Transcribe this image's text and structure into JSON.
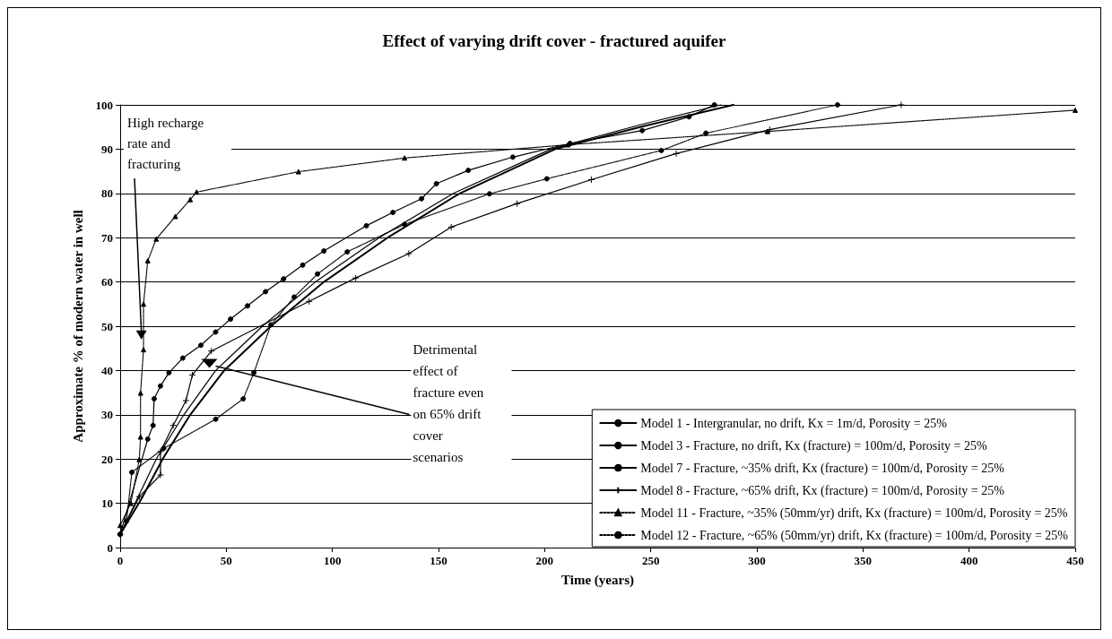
{
  "chart_data": {
    "type": "line",
    "title": "Effect of varying drift cover - fractured aquifer",
    "xlabel": "Time (years)",
    "ylabel": "Approximate % of modern water in well",
    "xlim": [
      0,
      450
    ],
    "xticks": [
      0,
      50,
      100,
      150,
      200,
      250,
      300,
      350,
      400,
      450
    ],
    "ylim": [
      0,
      100
    ],
    "yticks": [
      0,
      10,
      20,
      30,
      40,
      50,
      60,
      70,
      80,
      90,
      100
    ],
    "grid": "y",
    "legend": "bottom right",
    "series": [
      {
        "name": "Model 1 - Intergranular, no drift, Kx = 1m/d, Porosity = 25%",
        "color": "#000000",
        "marker": "none",
        "line_style": "solid",
        "x": [
          0,
          10,
          20,
          33,
          49,
          71,
          96,
          126,
          160,
          205,
          245,
          289
        ],
        "values": [
          3,
          11,
          20,
          30,
          40,
          50,
          60,
          70,
          80,
          90,
          95,
          100
        ]
      },
      {
        "name": "Model 3 - Fracture, no drift, Kx (fracture) = 100m/d, Porosity = 25%",
        "color": "#000000",
        "marker": "none",
        "line_style": "solid",
        "x": [
          0,
          8,
          17,
          30,
          45,
          67,
          92,
          122,
          157,
          203,
          245,
          283
        ],
        "values": [
          3,
          11,
          20,
          30,
          40,
          50,
          60,
          70,
          80,
          90,
          95.5,
          100
        ]
      },
      {
        "name": "Model 7 - Fracture, ~35% drift, Kx (fracture) = 100m/d, Porosity = 25%",
        "color": "#000000",
        "marker": "circle",
        "line_style": "solid",
        "x": [
          0,
          13,
          15.5,
          16,
          19,
          23,
          29.5,
          38,
          45,
          52,
          60,
          68.5,
          77,
          86,
          96,
          116,
          128.5,
          142,
          149,
          164,
          185,
          212,
          246,
          268,
          280
        ],
        "values": [
          3,
          24.5,
          27.6,
          33.6,
          36.5,
          39.5,
          42.8,
          45.7,
          48.7,
          51.6,
          54.6,
          57.8,
          60.7,
          63.8,
          67,
          72.7,
          75.7,
          78.8,
          82.2,
          85.2,
          88.2,
          91.3,
          94.2,
          97.3,
          100
        ]
      },
      {
        "name": "Model 8 - Fracture, ~65% drift, Kx (fracture) = 100m/d, Porosity = 25%",
        "color": "#000000",
        "marker": "cross",
        "line_style": "solid",
        "x": [
          0,
          9,
          19,
          19,
          25,
          31,
          34,
          43,
          89,
          111,
          136,
          156,
          187,
          222,
          262,
          306,
          368
        ],
        "values": [
          3,
          11.5,
          16.4,
          21.7,
          27.6,
          33.2,
          39,
          44.4,
          55.6,
          60.9,
          66.4,
          72.4,
          77.7,
          83.1,
          89,
          94.4,
          100
        ]
      },
      {
        "name": "Model 11 - Fracture, ~35% (50mm/yr) drift, Kx (fracture) = 100m/d, Porosity = 25%",
        "color": "#000000",
        "marker": "triangle",
        "line_style": "dotted",
        "x": [
          0,
          5,
          9,
          9.6,
          9.6,
          11,
          11,
          13,
          17,
          26,
          33,
          36,
          84,
          134,
          211,
          305,
          450
        ],
        "values": [
          5,
          10,
          19.9,
          25,
          34.9,
          44.7,
          55,
          64.8,
          69.7,
          74.8,
          78.6,
          80.3,
          84.9,
          88,
          91,
          94,
          98.8
        ]
      },
      {
        "name": "Model 12 - Fracture, ~65% (50mm/yr) drift, Kx (fracture) = 100m/d, Porosity = 25%",
        "color": "#000000",
        "marker": "circle",
        "line_style": "dotted",
        "x": [
          0,
          3,
          5.5,
          20.5,
          45,
          58,
          63,
          71,
          82,
          93,
          107,
          134,
          174,
          201,
          255,
          276,
          338
        ],
        "values": [
          3,
          6,
          17,
          22.4,
          29,
          33.6,
          39.5,
          50.3,
          56.6,
          61.8,
          66.8,
          73,
          79.9,
          83.3,
          89.7,
          93.6,
          100
        ]
      }
    ],
    "annotations": [
      {
        "text": "High recharge rate and fracturing",
        "x": 10,
        "y": 47
      },
      {
        "text": "Detrimental effect of fracture even on 65% drift cover scenarios",
        "x": 45,
        "y": 41
      }
    ]
  }
}
